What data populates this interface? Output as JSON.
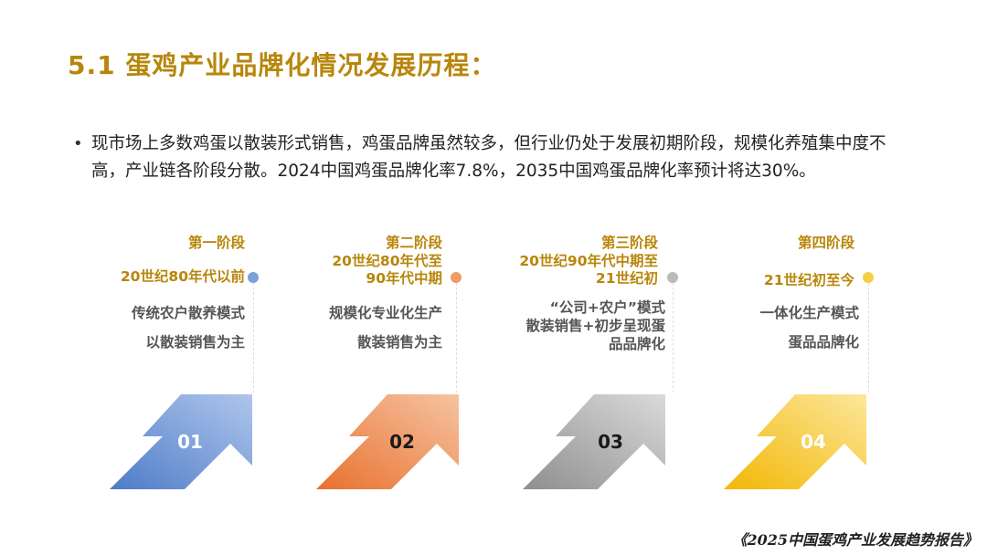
{
  "title": "5.1 蛋鸡产业品牌化情况发展历程：",
  "bullet": {
    "text": "现市场上多数鸡蛋以散装形式销售，鸡蛋品牌虽然较多，但行业仍处于发展初期阶段，规模化养殖集中度不高，产业链各阶段分散。2024中国鸡蛋品牌化率7.8%，2035中国鸡蛋品牌化率预计将达30%。"
  },
  "stages": [
    {
      "label": "第一阶段",
      "period": [
        "20世纪80年代以前"
      ],
      "desc": [
        "传统农户散养模式",
        "以散装销售为主"
      ],
      "number": "01",
      "color_start": "#4E7BC7",
      "color_end": "#AFC6EC",
      "dot_color": "#7D9FD8",
      "num_color": "#ffffff"
    },
    {
      "label": "第二阶段",
      "period": [
        "20世纪80年代至",
        "90年代中期"
      ],
      "desc": [
        "规模化专业化生产",
        "散装销售为主"
      ],
      "number": "02",
      "color_start": "#E8712E",
      "color_end": "#F6C3A2",
      "dot_color": "#F09A66",
      "num_color": "#1a1a1a"
    },
    {
      "label": "第三阶段",
      "period": [
        "20世纪90年代中期至",
        "21世纪初"
      ],
      "desc": [
        "“公司+农户”模式",
        "散装销售+初步呈现蛋",
        "品品牌化"
      ],
      "number": "03",
      "color_start": "#8E8E8E",
      "color_end": "#DADADA",
      "dot_color": "#BBBBBB",
      "num_color": "#1a1a1a"
    },
    {
      "label": "第四阶段",
      "period": [
        "21世纪初至今"
      ],
      "desc": [
        "一体化生产模式",
        "蛋品品牌化"
      ],
      "number": "04",
      "color_start": "#F2B705",
      "color_end": "#FCE79A",
      "dot_color": "#F5CF45",
      "num_color": "#ffffff"
    }
  ],
  "footer": "《2025中国蛋鸡产业发展趋势报告》"
}
